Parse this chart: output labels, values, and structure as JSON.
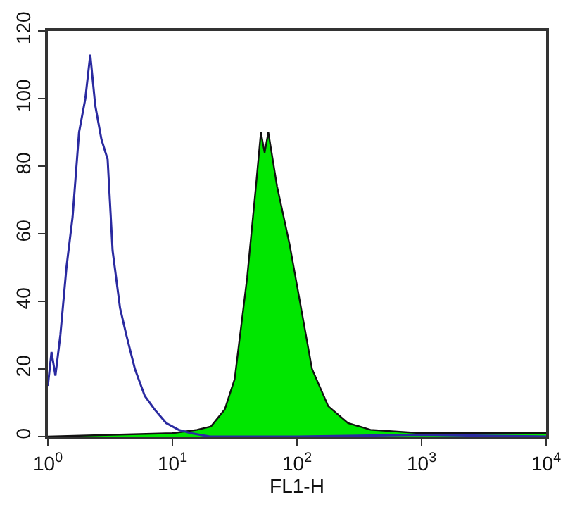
{
  "chart_data": {
    "type": "line",
    "xlabel": "FL1-H",
    "log": "x",
    "xlim": [
      1,
      10000
    ],
    "xticks": [
      {
        "value": 1,
        "label": "10$^{0}$"
      },
      {
        "value": 10,
        "label": "10$^{1}$"
      },
      {
        "value": 100,
        "label": "10$^{2}$"
      },
      {
        "value": 1000,
        "label": "10$^{3}$"
      },
      {
        "value": 10000,
        "label": "10$^{4}$"
      }
    ],
    "ylim": [
      0,
      120
    ],
    "yticks": [
      0,
      20,
      40,
      60,
      80,
      100,
      120
    ],
    "grid": false,
    "marker": "none",
    "line_style": "solid",
    "series": [
      {
        "type": "area",
        "color": "#00e600",
        "x": [
          1,
          10,
          15.8,
          20.4,
          26.3,
          31.6,
          39.8,
          46.8,
          51.3,
          55,
          58.9,
          69.2,
          87.1,
          102,
          132,
          178,
          257,
          389,
          1000,
          10000
        ],
        "values": [
          0,
          1,
          2,
          3,
          8,
          17,
          47,
          74,
          90,
          84,
          90,
          74,
          57,
          43,
          20,
          9,
          4,
          2,
          1,
          1
        ]
      },
      {
        "color": "#2a2aa0",
        "x": [
          1,
          1.07,
          1.15,
          1.26,
          1.41,
          1.58,
          1.78,
          2.0,
          2.19,
          2.4,
          2.69,
          3.02,
          3.31,
          3.8,
          4.27,
          5.0,
          6.0,
          7.2,
          8.9,
          11.2,
          14.1,
          20,
          100,
          1000,
          10000
        ],
        "values": [
          15,
          25,
          18,
          30,
          50,
          65,
          90,
          100,
          113,
          98,
          88,
          82,
          55,
          38,
          30,
          20,
          12,
          8,
          4,
          2,
          1,
          0,
          0,
          0.5,
          0
        ]
      }
    ]
  }
}
